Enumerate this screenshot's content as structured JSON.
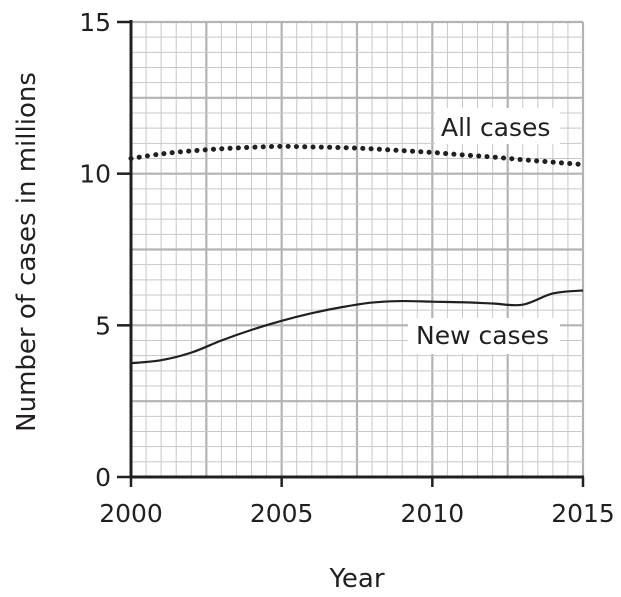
{
  "chart_data": {
    "type": "line",
    "title": "",
    "xlabel": "Year",
    "ylabel": "Number of cases in millions",
    "xlim": [
      2000,
      2015
    ],
    "ylim": [
      0,
      15
    ],
    "x_ticks": [
      2000,
      2005,
      2010,
      2015
    ],
    "y_ticks": [
      0,
      5,
      10,
      15
    ],
    "grid": true,
    "minor_grid_step": {
      "x": 0.5,
      "y": 0.5
    },
    "major_grid_step": {
      "x": 2.5,
      "y": 2.5
    },
    "series": [
      {
        "name": "All cases",
        "style": "dotted",
        "x": [
          2000,
          2001,
          2002,
          2003,
          2004,
          2005,
          2006,
          2007,
          2008,
          2009,
          2010,
          2011,
          2012,
          2013,
          2014,
          2015
        ],
        "y": [
          10.5,
          10.65,
          10.75,
          10.82,
          10.87,
          10.9,
          10.88,
          10.86,
          10.82,
          10.76,
          10.7,
          10.62,
          10.55,
          10.46,
          10.38,
          10.3
        ]
      },
      {
        "name": "New cases",
        "style": "solid",
        "x": [
          2000,
          2001,
          2002,
          2003,
          2004,
          2005,
          2006,
          2007,
          2008,
          2009,
          2010,
          2011,
          2012,
          2013,
          2014,
          2015
        ],
        "y": [
          3.75,
          3.85,
          4.1,
          4.5,
          4.85,
          5.15,
          5.4,
          5.6,
          5.75,
          5.8,
          5.78,
          5.76,
          5.72,
          5.68,
          6.05,
          6.15
        ]
      }
    ]
  }
}
